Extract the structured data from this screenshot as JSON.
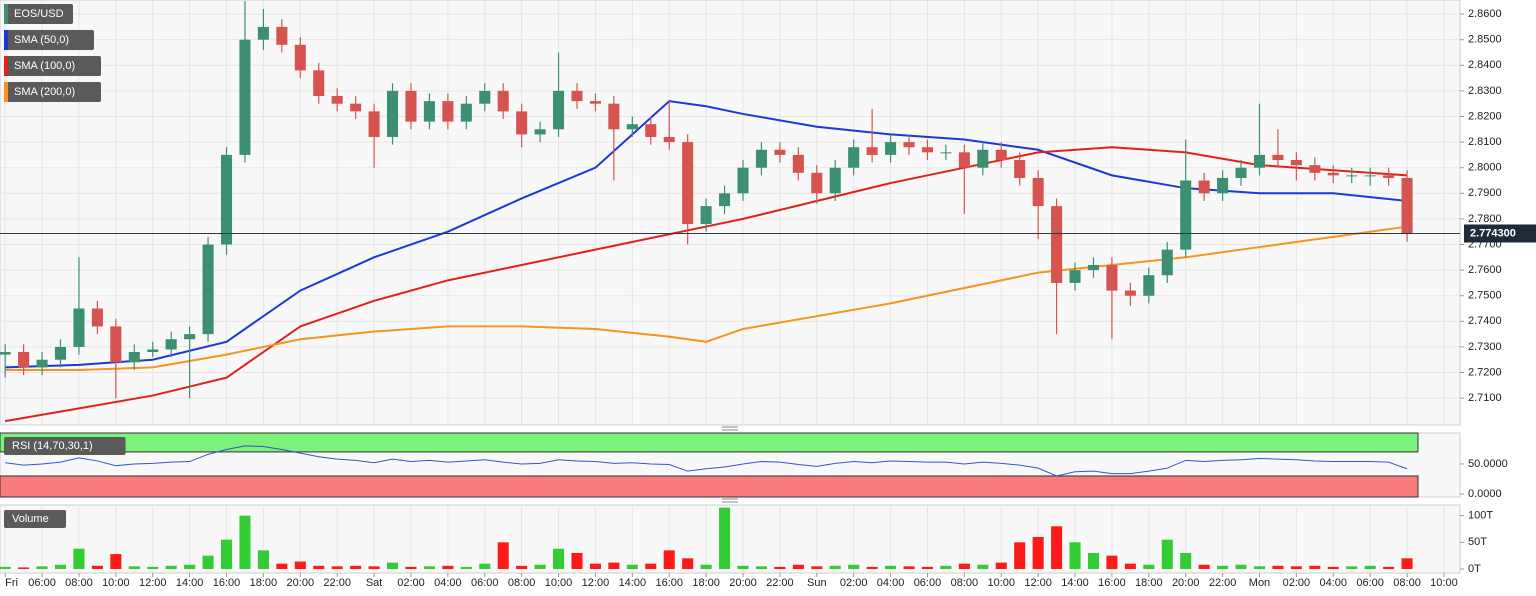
{
  "chart_data": {
    "type": "candlestick",
    "title": "EOS/USD",
    "x": [
      4,
      5,
      6,
      7,
      8,
      9,
      10,
      11,
      12,
      13,
      14,
      15,
      16,
      17,
      18,
      19,
      20,
      21,
      22,
      23,
      24,
      25,
      26,
      27,
      28,
      29,
      30,
      31,
      32,
      33,
      34,
      35,
      36,
      37,
      38,
      39,
      40,
      41,
      42,
      43,
      44,
      45,
      46,
      47,
      48,
      49,
      50,
      51,
      52,
      53,
      54,
      55,
      56,
      57,
      58,
      59,
      60,
      61,
      62,
      63,
      64,
      65,
      66,
      67,
      68,
      69,
      70,
      71,
      72,
      73,
      74,
      75,
      76,
      77,
      78,
      79,
      80
    ],
    "open": [
      2.727,
      2.728,
      2.722,
      2.725,
      2.73,
      2.745,
      2.738,
      2.724,
      2.728,
      2.729,
      2.733,
      2.735,
      2.77,
      2.805,
      2.85,
      2.855,
      2.848,
      2.838,
      2.828,
      2.825,
      2.822,
      2.812,
      2.83,
      2.818,
      2.826,
      2.818,
      2.825,
      2.83,
      2.822,
      2.813,
      2.815,
      2.83,
      2.826,
      2.825,
      2.815,
      2.817,
      2.812,
      2.81,
      2.778,
      2.785,
      2.79,
      2.8,
      2.807,
      2.805,
      2.798,
      2.79,
      2.8,
      2.808,
      2.805,
      2.81,
      2.808,
      2.806,
      2.806,
      2.8,
      2.807,
      2.803,
      2.796,
      2.785,
      2.755,
      2.76,
      2.762,
      2.752,
      2.75,
      2.758,
      2.768,
      2.795,
      2.79,
      2.796,
      2.8,
      2.805,
      2.803,
      2.801,
      2.798,
      2.797,
      2.797,
      2.797,
      2.796
    ],
    "high": [
      2.731,
      2.731,
      2.728,
      2.733,
      2.765,
      2.748,
      2.741,
      2.731,
      2.732,
      2.736,
      2.738,
      2.773,
      2.808,
      2.865,
      2.862,
      2.858,
      2.851,
      2.841,
      2.831,
      2.828,
      2.825,
      2.833,
      2.833,
      2.829,
      2.829,
      2.828,
      2.833,
      2.833,
      2.825,
      2.818,
      2.845,
      2.833,
      2.829,
      2.828,
      2.82,
      2.82,
      2.826,
      2.813,
      2.788,
      2.793,
      2.803,
      2.81,
      2.81,
      2.808,
      2.801,
      2.803,
      2.811,
      2.823,
      2.813,
      2.813,
      2.811,
      2.809,
      2.809,
      2.81,
      2.81,
      2.806,
      2.799,
      2.788,
      2.763,
      2.765,
      2.765,
      2.755,
      2.761,
      2.771,
      2.811,
      2.798,
      2.799,
      2.803,
      2.825,
      2.815,
      2.806,
      2.804,
      2.801,
      2.8,
      2.8,
      2.8,
      2.799
    ],
    "low": [
      2.718,
      2.719,
      2.719,
      2.722,
      2.727,
      2.735,
      2.71,
      2.721,
      2.726,
      2.726,
      2.71,
      2.732,
      2.766,
      2.802,
      2.846,
      2.845,
      2.835,
      2.825,
      2.822,
      2.819,
      2.8,
      2.809,
      2.815,
      2.815,
      2.815,
      2.815,
      2.822,
      2.819,
      2.808,
      2.81,
      2.812,
      2.823,
      2.822,
      2.795,
      2.812,
      2.809,
      2.807,
      2.77,
      2.775,
      2.782,
      2.787,
      2.797,
      2.802,
      2.795,
      2.786,
      2.787,
      2.797,
      2.802,
      2.802,
      2.805,
      2.803,
      2.803,
      2.782,
      2.797,
      2.8,
      2.793,
      2.772,
      2.735,
      2.752,
      2.757,
      2.733,
      2.746,
      2.747,
      2.755,
      2.765,
      2.787,
      2.787,
      2.793,
      2.797,
      2.8,
      2.795,
      2.795,
      2.794,
      2.794,
      2.793,
      2.793,
      2.771
    ],
    "close": [
      2.728,
      2.722,
      2.725,
      2.73,
      2.745,
      2.738,
      2.724,
      2.728,
      2.729,
      2.733,
      2.735,
      2.77,
      2.805,
      2.85,
      2.855,
      2.848,
      2.838,
      2.828,
      2.825,
      2.822,
      2.812,
      2.83,
      2.818,
      2.826,
      2.818,
      2.825,
      2.83,
      2.822,
      2.813,
      2.815,
      2.83,
      2.826,
      2.825,
      2.815,
      2.817,
      2.812,
      2.81,
      2.778,
      2.785,
      2.79,
      2.8,
      2.807,
      2.805,
      2.798,
      2.79,
      2.8,
      2.808,
      2.805,
      2.81,
      2.808,
      2.806,
      2.806,
      2.8,
      2.807,
      2.803,
      2.796,
      2.785,
      2.755,
      2.76,
      2.762,
      2.752,
      2.75,
      2.758,
      2.768,
      2.795,
      2.79,
      2.796,
      2.8,
      2.805,
      2.803,
      2.801,
      2.798,
      2.797,
      2.797,
      2.797,
      2.796,
      2.7743
    ],
    "up_color": "#3d8f73",
    "down_color": "#d6544f",
    "xlim": [
      3.72,
      82.87
    ],
    "xticks": [
      {
        "value": 4,
        "label": "Fri"
      },
      {
        "value": 6,
        "label": "06:00"
      },
      {
        "value": 8,
        "label": "08:00"
      },
      {
        "value": 10,
        "label": "10:00"
      },
      {
        "value": 12,
        "label": "12:00"
      },
      {
        "value": 14,
        "label": "14:00"
      },
      {
        "value": 16,
        "label": "16:00"
      },
      {
        "value": 18,
        "label": "18:00"
      },
      {
        "value": 20,
        "label": "20:00"
      },
      {
        "value": 22,
        "label": "22:00"
      },
      {
        "value": 24,
        "label": "Sat"
      },
      {
        "value": 26,
        "label": "02:00"
      },
      {
        "value": 28,
        "label": "04:00"
      },
      {
        "value": 30,
        "label": "06:00"
      },
      {
        "value": 32,
        "label": "08:00"
      },
      {
        "value": 34,
        "label": "10:00"
      },
      {
        "value": 36,
        "label": "12:00"
      },
      {
        "value": 38,
        "label": "14:00"
      },
      {
        "value": 40,
        "label": "16:00"
      },
      {
        "value": 42,
        "label": "18:00"
      },
      {
        "value": 44,
        "label": "20:00"
      },
      {
        "value": 46,
        "label": "22:00"
      },
      {
        "value": 48,
        "label": "Sun"
      },
      {
        "value": 50,
        "label": "02:00"
      },
      {
        "value": 52,
        "label": "04:00"
      },
      {
        "value": 54,
        "label": "06:00"
      },
      {
        "value": 56,
        "label": "08:00"
      },
      {
        "value": 58,
        "label": "10:00"
      },
      {
        "value": 60,
        "label": "12:00"
      },
      {
        "value": 62,
        "label": "14:00"
      },
      {
        "value": 64,
        "label": "16:00"
      },
      {
        "value": 66,
        "label": "18:00"
      },
      {
        "value": 68,
        "label": "20:00"
      },
      {
        "value": 70,
        "label": "22:00"
      },
      {
        "value": 72,
        "label": "Mon"
      },
      {
        "value": 74,
        "label": "02:00"
      },
      {
        "value": 76,
        "label": "04:00"
      },
      {
        "value": 78,
        "label": "06:00"
      },
      {
        "value": 80,
        "label": "08:00"
      },
      {
        "value": 82,
        "label": "10:00"
      }
    ],
    "ylim": [
      2.6995,
      2.8655
    ],
    "yticks": [
      {
        "value": 2.71,
        "label": "2.7100"
      },
      {
        "value": 2.72,
        "label": "2.7200"
      },
      {
        "value": 2.73,
        "label": "2.7300"
      },
      {
        "value": 2.74,
        "label": "2.7400"
      },
      {
        "value": 2.75,
        "label": "2.7500"
      },
      {
        "value": 2.76,
        "label": "2.7600"
      },
      {
        "value": 2.77,
        "label": "2.7700"
      },
      {
        "value": 2.78,
        "label": "2.7800"
      },
      {
        "value": 2.79,
        "label": "2.7900"
      },
      {
        "value": 2.8,
        "label": "2.8000"
      },
      {
        "value": 2.81,
        "label": "2.8100"
      },
      {
        "value": 2.82,
        "label": "2.8200"
      },
      {
        "value": 2.83,
        "label": "2.8300"
      },
      {
        "value": 2.84,
        "label": "2.8400"
      },
      {
        "value": 2.85,
        "label": "2.8500"
      },
      {
        "value": 2.86,
        "label": "2.8600"
      }
    ],
    "grid": true,
    "series": [
      {
        "name": "SMA (50,0)",
        "color": "#1c38d6",
        "x": [
          4,
          8,
          12,
          16,
          20,
          24,
          28,
          32,
          36,
          40,
          42,
          44,
          48,
          52,
          56,
          60,
          64,
          68,
          72,
          76,
          80
        ],
        "values": [
          2.722,
          2.723,
          2.725,
          2.732,
          2.752,
          2.765,
          2.775,
          2.788,
          2.8,
          2.826,
          2.824,
          2.821,
          2.816,
          2.813,
          2.811,
          2.807,
          2.797,
          2.792,
          2.79,
          2.79,
          2.787
        ]
      },
      {
        "name": "SMA (100,0)",
        "color": "#e3211c",
        "x": [
          4,
          8,
          12,
          16,
          20,
          24,
          28,
          32,
          36,
          40,
          42,
          44,
          48,
          52,
          56,
          60,
          64,
          68,
          72,
          76,
          80
        ],
        "values": [
          2.701,
          2.706,
          2.711,
          2.718,
          2.738,
          2.748,
          2.756,
          2.762,
          2.768,
          2.774,
          2.777,
          2.78,
          2.787,
          2.794,
          2.8,
          2.806,
          2.808,
          2.806,
          2.801,
          2.799,
          2.797
        ]
      },
      {
        "name": "SMA (200,0)",
        "color": "#f7931e",
        "x": [
          4,
          8,
          12,
          16,
          20,
          24,
          28,
          32,
          36,
          40,
          42,
          44,
          48,
          52,
          56,
          60,
          64,
          68,
          72,
          76,
          80
        ],
        "values": [
          2.721,
          2.721,
          2.722,
          2.727,
          2.733,
          2.736,
          2.738,
          2.738,
          2.737,
          2.734,
          2.732,
          2.737,
          2.742,
          2.747,
          2.753,
          2.759,
          2.762,
          2.765,
          2.769,
          2.773,
          2.777
        ]
      }
    ],
    "last_price": 2.7743,
    "last_price_label": "2.774300",
    "rsi": {
      "name": "RSI (14,70,30,1)",
      "color": "#2e55d6",
      "overbought": 70,
      "oversold": 30,
      "values": [
        52,
        48,
        50,
        53,
        60,
        55,
        47,
        50,
        51,
        53,
        54,
        66,
        74,
        80,
        79,
        74,
        68,
        62,
        58,
        56,
        52,
        58,
        54,
        56,
        53,
        55,
        57,
        53,
        50,
        51,
        57,
        55,
        54,
        51,
        52,
        50,
        49,
        38,
        42,
        45,
        50,
        54,
        53,
        49,
        46,
        51,
        54,
        52,
        55,
        54,
        53,
        53,
        50,
        53,
        51,
        48,
        43,
        30,
        37,
        38,
        34,
        34,
        38,
        43,
        56,
        54,
        56,
        57,
        59,
        58,
        57,
        55,
        54,
        54,
        54,
        53,
        42
      ],
      "ylim": [
        -5,
        101.5
      ],
      "yticks": [
        {
          "value": 50,
          "label": "50.0000"
        },
        {
          "value": 0,
          "label": "0.0000"
        }
      ]
    },
    "volume": {
      "name": "Volume",
      "up_color": "#33cc33",
      "down_color": "#ff1a1a",
      "values": [
        4,
        3,
        5,
        8,
        38,
        6,
        28,
        5,
        4,
        6,
        8,
        25,
        55,
        100,
        35,
        10,
        14,
        6,
        5,
        6,
        5,
        12,
        4,
        5,
        6,
        4,
        10,
        50,
        6,
        8,
        38,
        30,
        10,
        12,
        8,
        10,
        35,
        20,
        8,
        115,
        6,
        5,
        4,
        8,
        5,
        6,
        8,
        4,
        6,
        5,
        4,
        6,
        10,
        8,
        12,
        50,
        60,
        80,
        50,
        30,
        25,
        10,
        8,
        55,
        30,
        8,
        6,
        8,
        5,
        6,
        5,
        6,
        4,
        5,
        6,
        4,
        20
      ],
      "ylim": [
        -7.5,
        120
      ],
      "yticks": [
        {
          "value": 100,
          "label": "100T"
        },
        {
          "value": 50,
          "label": "50T"
        },
        {
          "value": 0,
          "label": "0T"
        }
      ]
    }
  }
}
